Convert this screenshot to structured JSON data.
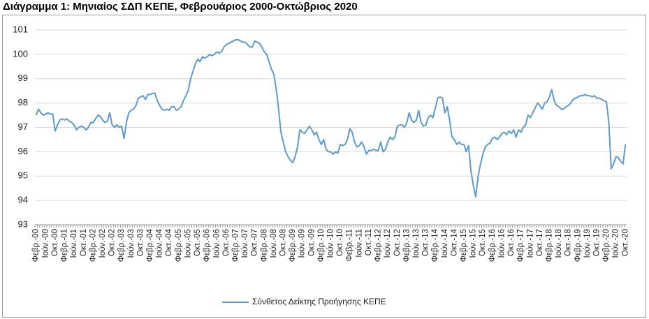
{
  "chart_data": {
    "type": "line",
    "title": "Διάγραμμα 1: Μηνιαίος ΣΔΠ ΚΕΠΕ, Φεβρουάριος 2000-Οκτώβριος 2020",
    "categories": [
      "Φεβρ.-00",
      null,
      null,
      null,
      "Ιούν.-00",
      null,
      null,
      null,
      "Οκτ.-00",
      null,
      null,
      null,
      "Φεβρ.-01",
      null,
      null,
      null,
      "Ιούν.-01",
      null,
      null,
      null,
      "Οκτ.-01",
      null,
      null,
      null,
      "Φεβρ.-02",
      null,
      null,
      null,
      "Ιούν.-02",
      null,
      null,
      null,
      "Οκτ.-02",
      null,
      null,
      null,
      "Φεβρ.-03",
      null,
      null,
      null,
      "Ιούν.-03",
      null,
      null,
      null,
      "Οκτ.-03",
      null,
      null,
      null,
      "Φεβρ.-04",
      null,
      null,
      null,
      "Ιούν.-04",
      null,
      null,
      null,
      "Οκτ.-04",
      null,
      null,
      null,
      "Φεβρ.-05",
      null,
      null,
      null,
      "Ιούν.-05",
      null,
      null,
      null,
      "Οκτ.-05",
      null,
      null,
      null,
      "Φεβρ.-06",
      null,
      null,
      null,
      "Ιούν.-06",
      null,
      null,
      null,
      "Οκτ.-06",
      null,
      null,
      null,
      "Φεβρ.-07",
      null,
      null,
      null,
      "Ιούν.-07",
      null,
      null,
      null,
      "Οκτ.-07",
      null,
      null,
      null,
      "Φεβρ.-08",
      null,
      null,
      null,
      "Ιούν.-08",
      null,
      null,
      null,
      "Οκτ.-08",
      null,
      null,
      null,
      "Φεβρ.-09",
      null,
      null,
      null,
      "Ιούν.-09",
      null,
      null,
      null,
      "Οκτ.-09",
      null,
      null,
      null,
      "Φεβρ.-10",
      null,
      null,
      null,
      "Ιούν.-10",
      null,
      null,
      null,
      "Οκτ.-10",
      null,
      null,
      null,
      "Φεβρ.-11",
      null,
      null,
      null,
      "Ιούν.-11",
      null,
      null,
      null,
      "Οκτ.-11",
      null,
      null,
      null,
      "Φεβρ.-12",
      null,
      null,
      null,
      "Ιούν.-12",
      null,
      null,
      null,
      "Οκτ.-12",
      null,
      null,
      null,
      "Φεβρ.-13",
      null,
      null,
      null,
      "Ιούν.-13",
      null,
      null,
      null,
      "Οκτ.-13",
      null,
      null,
      null,
      "Φεβρ.-14",
      null,
      null,
      null,
      "Ιούν.-14",
      null,
      null,
      null,
      "Οκτ.-14",
      null,
      null,
      null,
      "Φεβρ.-15",
      null,
      null,
      null,
      "Ιούν.-15",
      null,
      null,
      null,
      "Οκτ.-15",
      null,
      null,
      null,
      "Φεβρ.-16",
      null,
      null,
      null,
      "Ιούν.-16",
      null,
      null,
      null,
      "Οκτ.-16",
      null,
      null,
      null,
      "Φεβρ.-17",
      null,
      null,
      null,
      "Ιούν.-17",
      null,
      null,
      null,
      "Οκτ.-17",
      null,
      null,
      null,
      "Φεβρ.-18",
      null,
      null,
      null,
      "Ιούν.-18",
      null,
      null,
      null,
      "Οκτ.-18",
      null,
      null,
      null,
      "Φεβρ.-19",
      null,
      null,
      null,
      "Ιούν.-19",
      null,
      null,
      null,
      "Οκτ.-19",
      null,
      null,
      null,
      "Φεβρ.-20",
      null,
      null,
      null,
      "Ιούν.-20",
      null,
      null,
      null,
      "Οκτ.-20"
    ],
    "series": [
      {
        "name": "Σύνθετος Δείκτης Προήγησης ΚΕΠΕ",
        "color": "#5b9bd5",
        "values": [
          97.5,
          97.75,
          97.6,
          97.5,
          97.55,
          97.6,
          97.55,
          97.55,
          96.85,
          97.1,
          97.3,
          97.35,
          97.3,
          97.35,
          97.25,
          97.2,
          97.1,
          96.9,
          97.0,
          97.05,
          97.0,
          96.9,
          97.0,
          97.2,
          97.2,
          97.35,
          97.5,
          97.45,
          97.3,
          97.2,
          97.25,
          97.6,
          97.1,
          97.0,
          97.1,
          97.0,
          97.05,
          96.55,
          97.2,
          97.6,
          97.7,
          97.75,
          97.9,
          98.2,
          98.25,
          98.3,
          98.15,
          98.35,
          98.35,
          98.4,
          98.4,
          98.1,
          97.9,
          97.75,
          97.7,
          97.75,
          97.7,
          97.85,
          97.85,
          97.7,
          97.75,
          97.85,
          98.1,
          98.3,
          98.5,
          99.0,
          99.3,
          99.6,
          99.8,
          99.7,
          99.9,
          99.85,
          99.9,
          100.0,
          99.95,
          100.0,
          100.1,
          100.05,
          100.1,
          100.3,
          100.4,
          100.45,
          100.5,
          100.55,
          100.6,
          100.6,
          100.55,
          100.5,
          100.5,
          100.4,
          100.3,
          100.3,
          100.55,
          100.5,
          100.45,
          100.3,
          100.1,
          100.0,
          99.7,
          99.4,
          99.2,
          98.6,
          97.8,
          96.8,
          96.4,
          96.0,
          95.8,
          95.65,
          95.55,
          95.8,
          96.2,
          96.9,
          96.8,
          96.75,
          96.9,
          97.05,
          96.9,
          96.7,
          96.8,
          96.5,
          96.3,
          96.5,
          96.1,
          96.0,
          96.0,
          95.9,
          96.0,
          95.95,
          96.3,
          96.25,
          96.3,
          96.5,
          96.95,
          96.8,
          96.4,
          96.2,
          96.25,
          96.4,
          96.2,
          95.9,
          96.05,
          96.05,
          96.1,
          96.05,
          96.05,
          96.4,
          96.0,
          96.1,
          96.4,
          96.6,
          96.5,
          96.6,
          97.05,
          97.1,
          97.1,
          97.0,
          97.2,
          97.6,
          97.3,
          97.2,
          97.3,
          97.7,
          97.2,
          97.05,
          97.1,
          97.4,
          97.5,
          97.4,
          97.8,
          98.2,
          98.25,
          98.2,
          97.6,
          97.85,
          97.3,
          96.6,
          96.5,
          96.3,
          96.4,
          96.3,
          96.3,
          96.0,
          96.25,
          95.2,
          94.6,
          94.15,
          95.0,
          95.5,
          95.9,
          96.2,
          96.3,
          96.35,
          96.55,
          96.6,
          96.5,
          96.6,
          96.75,
          96.8,
          96.7,
          96.85,
          96.75,
          96.9,
          96.6,
          96.9,
          96.8,
          97.0,
          97.1,
          97.5,
          97.4,
          97.6,
          97.8,
          98.0,
          97.9,
          97.75,
          98.0,
          98.05,
          98.25,
          98.55,
          98.1,
          97.9,
          97.85,
          97.75,
          97.75,
          97.85,
          97.9,
          98.0,
          98.15,
          98.2,
          98.25,
          98.3,
          98.3,
          98.35,
          98.3,
          98.3,
          98.25,
          98.3,
          98.2,
          98.2,
          98.15,
          98.1,
          98.05,
          97.2,
          95.3,
          95.5,
          95.8,
          95.75,
          95.6,
          95.5,
          96.3
        ]
      }
    ],
    "ylim": [
      93,
      101
    ],
    "yticks": [
      93,
      94,
      95,
      96,
      97,
      98,
      99,
      100,
      101
    ],
    "grid": true,
    "legend": "bottom"
  }
}
